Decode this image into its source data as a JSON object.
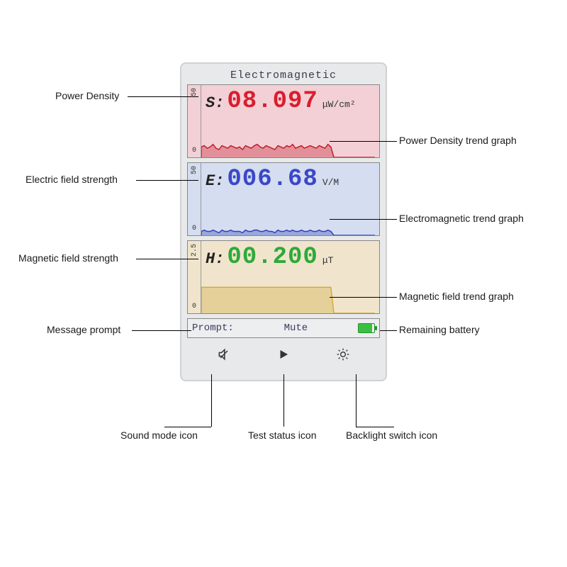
{
  "title": "Electromagnetic",
  "panels": {
    "s": {
      "label": "S:",
      "value": "08.097",
      "unit": "μW/cm²",
      "value_color": "#d91e2e",
      "bg_color": "#f3d0d6",
      "trend_color": "#c11a28",
      "y_max": "50",
      "y_min": "0",
      "trend_points": [
        8,
        9,
        7,
        8,
        10,
        7,
        6,
        9,
        8,
        7,
        9,
        8,
        7,
        8,
        6,
        9,
        8,
        7,
        9,
        10,
        8,
        7,
        9,
        8,
        7,
        6,
        9,
        8,
        7,
        9,
        8,
        10,
        7,
        8,
        9,
        7,
        8,
        9,
        8,
        7,
        9,
        8,
        7,
        10,
        8,
        0,
        0,
        0,
        0,
        0,
        0,
        0,
        0,
        0,
        0,
        0,
        0,
        0,
        0,
        0
      ]
    },
    "e": {
      "label": "E:",
      "value": "006.68",
      "unit": "V/M",
      "value_color": "#3948c9",
      "bg_color": "#d5ddf0",
      "trend_color": "#2e3fb8",
      "y_max": "50",
      "y_min": "0",
      "trend_points": [
        3,
        4,
        3,
        3,
        4,
        3,
        2,
        4,
        3,
        3,
        4,
        3,
        3,
        3,
        2,
        4,
        3,
        3,
        4,
        4,
        3,
        3,
        4,
        3,
        3,
        2,
        4,
        3,
        3,
        4,
        3,
        4,
        3,
        3,
        4,
        3,
        3,
        4,
        3,
        3,
        4,
        3,
        3,
        4,
        3,
        0,
        0,
        0,
        0,
        0,
        0,
        0,
        0,
        0,
        0,
        0,
        0,
        0,
        0,
        0
      ]
    },
    "h": {
      "label": "H:",
      "value": "00.200",
      "unit": "μT",
      "value_color": "#2fa93a",
      "bg_color": "#f0e5cc",
      "trend_color": "#d4a838",
      "y_max": "2.5",
      "y_min": "0",
      "trend_points": [
        1,
        1,
        1,
        1,
        1,
        1,
        1,
        1,
        1,
        1,
        1,
        1,
        1,
        1,
        1,
        1,
        1,
        1,
        1,
        1,
        1,
        1,
        1,
        1,
        1,
        1,
        1,
        1,
        1,
        1,
        1,
        1,
        1,
        1,
        1,
        1,
        1,
        1,
        1,
        1,
        1,
        1,
        1,
        1,
        1,
        0,
        0,
        0,
        0,
        0,
        0,
        0,
        0,
        0,
        0,
        0,
        0,
        0,
        0,
        0
      ]
    }
  },
  "prompt": {
    "label": "Prompt:",
    "value": "Mute"
  },
  "battery_pct": 85,
  "callouts": {
    "left": [
      "Power Density",
      "Electric field strength",
      "Magnetic field strength",
      "Message prompt"
    ],
    "right": [
      "Power Density trend graph",
      "Electromagnetic trend graph",
      "Magnetic field trend graph",
      "Remaining battery"
    ],
    "bottom": [
      "Sound mode icon",
      "Test status icon",
      "Backlight switch icon"
    ]
  },
  "colors": {
    "device_bg": "#e8e9ea",
    "device_border": "#d0d1d2",
    "panel_border": "#888888",
    "text": "#1a1a1a"
  }
}
